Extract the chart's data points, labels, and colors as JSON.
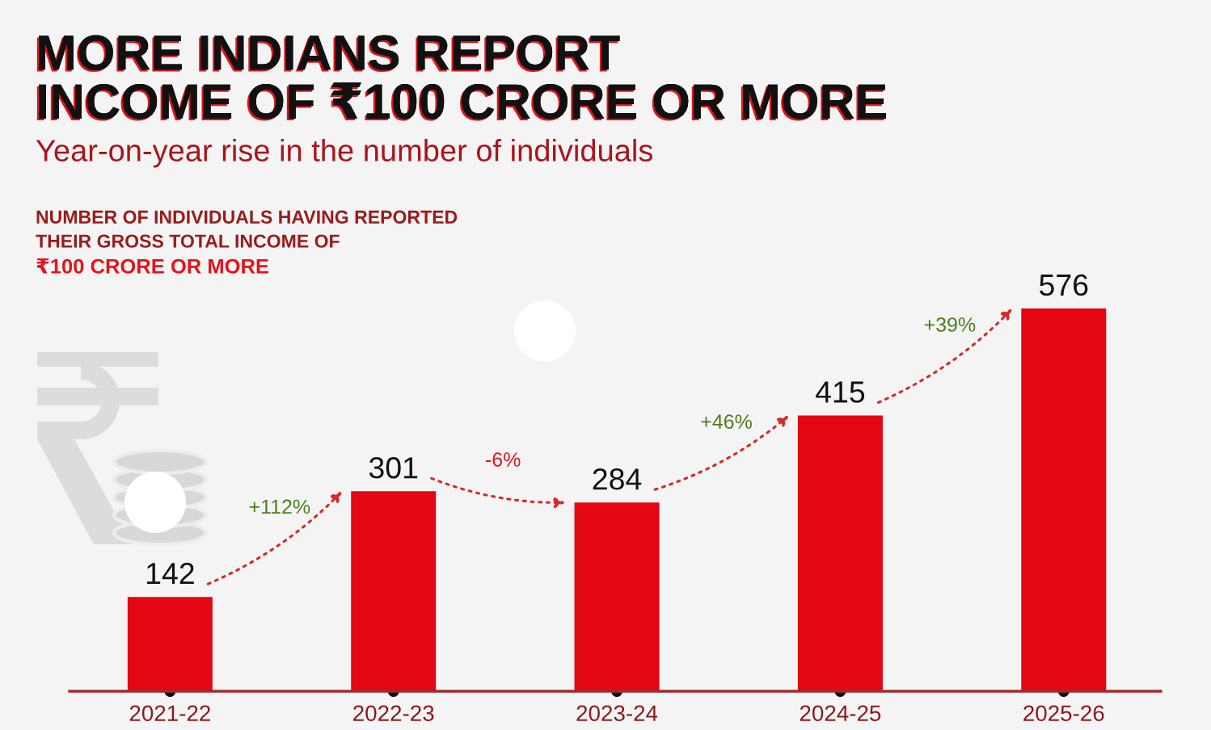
{
  "chart_data": {
    "type": "bar",
    "title": "MORE INDIANS REPORT\nINCOME OF ₹100 CRORE OR MORE",
    "subtitle": "Year-on-year rise in the number of individuals",
    "categories": [
      "2021-22",
      "2022-23",
      "2023-24",
      "2024-25",
      "2025-26"
    ],
    "values": [
      142,
      301,
      284,
      415,
      576
    ],
    "color": "#e30613",
    "data_labels": true,
    "tick_labels": "x",
    "annotations": [
      "NUMBER OF INDIVIDUALS HAVING REPORTED\nTHEIR GROSS TOTAL INCOME OF",
      "₹100 CRORE OR MORE",
      "+112%",
      "-6%",
      "+46%",
      "+39%"
    ]
  }
}
